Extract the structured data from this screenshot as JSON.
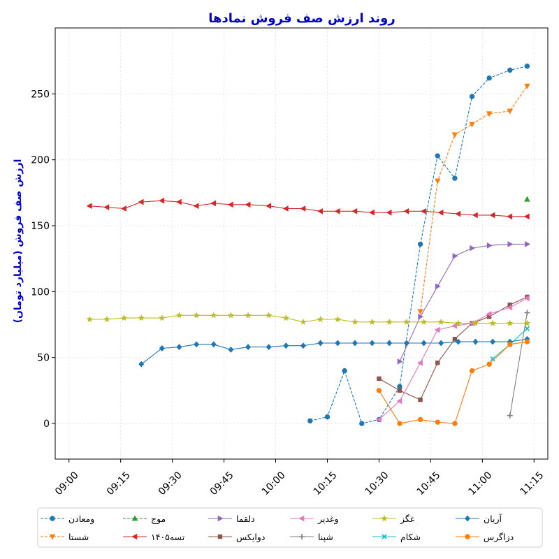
{
  "chart_data": {
    "type": "line",
    "title": "روند ارزش صف فروش نمادها",
    "ylabel": "ارزش صف فروش (میلیارد تومان)",
    "xlabel": "",
    "xlim": [
      "08:56",
      "11:19"
    ],
    "ylim": [
      -27,
      300
    ],
    "xticks": [
      "09:00",
      "09:15",
      "09:30",
      "09:45",
      "10:00",
      "10:15",
      "10:30",
      "10:45",
      "11:00",
      "11:15"
    ],
    "yticks": [
      0,
      50,
      100,
      150,
      200,
      250
    ],
    "grid": true,
    "legend_position": "bottom",
    "series": [
      {
        "name": "ومعادن",
        "color": "#1f77b4",
        "marker": "circle",
        "dash": true,
        "x": [
          "10:10",
          "10:15",
          "10:20",
          "10:25",
          "10:30",
          "10:36",
          "10:42",
          "10:47",
          "10:52",
          "10:57",
          "11:02",
          "11:08",
          "11:13"
        ],
        "y": [
          2,
          5,
          40,
          0,
          3,
          28,
          136,
          203,
          186,
          248,
          262,
          268,
          271
        ]
      },
      {
        "name": "شستا",
        "color": "#ff7f0e",
        "marker": "triangle-down",
        "dash": true,
        "x": [
          "10:42",
          "10:47",
          "10:52",
          "10:57",
          "11:02",
          "11:08",
          "11:13"
        ],
        "y": [
          85,
          184,
          219,
          227,
          235,
          237,
          256
        ]
      },
      {
        "name": "موج",
        "color": "#2ca02c",
        "marker": "triangle-up",
        "dash": true,
        "x": [
          "11:13"
        ],
        "y": [
          170
        ]
      },
      {
        "name": "تسه۱۴۰۵",
        "color": "#d62728",
        "marker": "triangle-left",
        "dash": false,
        "x": [
          "09:06",
          "09:11",
          "09:16",
          "09:21",
          "09:27",
          "09:32",
          "09:37",
          "09:42",
          "09:47",
          "09:52",
          "09:58",
          "10:03",
          "10:08",
          "10:13",
          "10:18",
          "10:23",
          "10:28",
          "10:33",
          "10:38",
          "10:43",
          "10:48",
          "10:53",
          "10:58",
          "11:03",
          "11:08",
          "11:13"
        ],
        "y": [
          165,
          164,
          163,
          168,
          169,
          168,
          165,
          167,
          166,
          166,
          165,
          163,
          163,
          161,
          161,
          161,
          160,
          160,
          161,
          161,
          160,
          159,
          158,
          158,
          157,
          157
        ]
      },
      {
        "name": "دلقما",
        "color": "#9467bd",
        "marker": "triangle-right",
        "dash": false,
        "x": [
          "10:36",
          "10:42",
          "10:47",
          "10:52",
          "10:57",
          "11:02",
          "11:08",
          "11:13"
        ],
        "y": [
          47,
          81,
          104,
          127,
          133,
          135,
          136,
          136
        ]
      },
      {
        "name": "دوایکس",
        "color": "#8c564b",
        "marker": "square",
        "dash": false,
        "x": [
          "10:30",
          "10:36",
          "10:42",
          "10:47",
          "10:52",
          "10:57",
          "11:02",
          "11:08",
          "11:13"
        ],
        "y": [
          34,
          25,
          18,
          46,
          64,
          76,
          81,
          90,
          96
        ]
      },
      {
        "name": "وغدیر",
        "color": "#e377c2",
        "marker": "triangle-left",
        "dash": false,
        "x": [
          "10:30",
          "10:36",
          "10:42",
          "10:47",
          "10:52",
          "10:57",
          "11:02",
          "11:08",
          "11:13"
        ],
        "y": [
          3,
          17,
          46,
          71,
          74,
          76,
          83,
          88,
          95
        ]
      },
      {
        "name": "شپنا",
        "color": "#7f7f7f",
        "marker": "plus",
        "dash": false,
        "x": [
          "11:08",
          "11:13"
        ],
        "y": [
          6,
          84
        ]
      },
      {
        "name": "غگز",
        "color": "#bcbd22",
        "marker": "star",
        "dash": false,
        "x": [
          "09:06",
          "09:11",
          "09:16",
          "09:21",
          "09:27",
          "09:32",
          "09:37",
          "09:42",
          "09:47",
          "09:52",
          "09:58",
          "10:03",
          "10:08",
          "10:13",
          "10:18",
          "10:23",
          "10:28",
          "10:33",
          "10:38",
          "10:43",
          "10:48",
          "10:53",
          "10:58",
          "11:03",
          "11:08",
          "11:13"
        ],
        "y": [
          79,
          79,
          80,
          80,
          80,
          82,
          82,
          82,
          82,
          82,
          82,
          80,
          77,
          79,
          79,
          77,
          77,
          77,
          77,
          77,
          77,
          76,
          76,
          76,
          76,
          76
        ]
      },
      {
        "name": "شکام",
        "color": "#17becf",
        "marker": "x",
        "dash": false,
        "x": [
          "11:03",
          "11:08",
          "11:13"
        ],
        "y": [
          49,
          60,
          72
        ]
      },
      {
        "name": "آریان",
        "color": "#1f77b4",
        "marker": "diamond",
        "dash": false,
        "x": [
          "09:21",
          "09:27",
          "09:32",
          "09:37",
          "09:42",
          "09:47",
          "09:52",
          "09:58",
          "10:03",
          "10:08",
          "10:13",
          "10:18",
          "10:23",
          "10:28",
          "10:33",
          "10:38",
          "10:43",
          "10:48",
          "10:53",
          "10:58",
          "11:03",
          "11:08",
          "11:13"
        ],
        "y": [
          45,
          57,
          58,
          60,
          60,
          56,
          58,
          58,
          59,
          59,
          61,
          61,
          61,
          61,
          61,
          61,
          61,
          61,
          62,
          62,
          62,
          62,
          64
        ]
      },
      {
        "name": "دزاگرس",
        "color": "#ff7f0e",
        "marker": "circle",
        "dash": false,
        "x": [
          "10:30",
          "10:36",
          "10:42",
          "10:47",
          "10:52",
          "10:57",
          "11:02",
          "11:08",
          "11:13"
        ],
        "y": [
          25,
          0,
          3,
          1,
          0,
          40,
          45,
          60,
          62
        ]
      }
    ],
    "legend_order": [
      "ومعادن",
      "موج",
      "دلقما",
      "وغدیر",
      "غگز",
      "آریان",
      "شستا",
      "تسه۱۴۰۵",
      "دوایکس",
      "شپنا",
      "شکام",
      "دزاگرس"
    ]
  }
}
